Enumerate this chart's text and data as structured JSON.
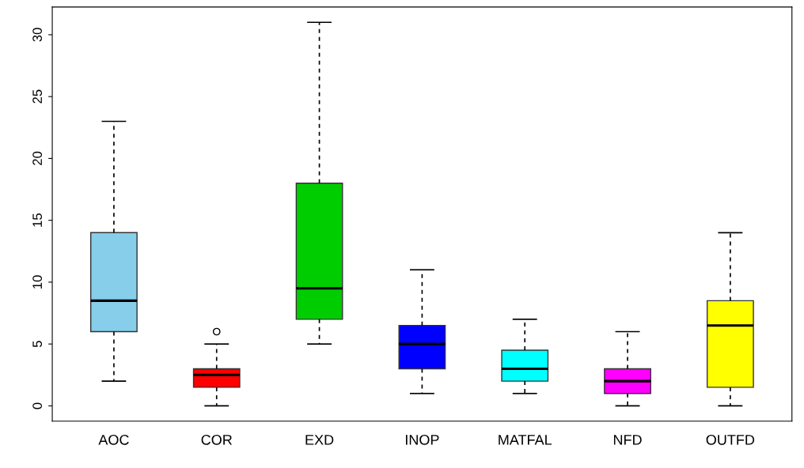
{
  "chart_data": {
    "type": "box",
    "categories": [
      "AOC",
      "COR",
      "EXD",
      "INOP",
      "MATFAL",
      "NFD",
      "OUTFD"
    ],
    "boxes": [
      {
        "low": 2,
        "q1": 6,
        "median": 8.5,
        "q3": 14,
        "high": 23
      },
      {
        "low": 0,
        "q1": 1.5,
        "median": 2.5,
        "q3": 3,
        "high": 5,
        "outliers": [
          6
        ]
      },
      {
        "low": 5,
        "q1": 7,
        "median": 9.5,
        "q3": 18,
        "high": 31
      },
      {
        "low": 1,
        "q1": 3,
        "median": 5,
        "q3": 6.5,
        "high": 11
      },
      {
        "low": 1,
        "q1": 2,
        "median": 3,
        "q3": 4.5,
        "high": 7
      },
      {
        "low": 0,
        "q1": 1,
        "median": 2,
        "q3": 3,
        "high": 6
      },
      {
        "low": 0,
        "q1": 1.5,
        "median": 6.5,
        "q3": 8.5,
        "high": 14
      }
    ],
    "colors": [
      "#87ceeb",
      "#ff0000",
      "#00cd00",
      "#0000ff",
      "#00ffff",
      "#ff00ff",
      "#ffff00"
    ],
    "ylim": [
      -1.24,
      32.24
    ],
    "yticks": [
      0,
      5,
      10,
      15,
      20,
      25,
      30
    ],
    "line_style": "dashed",
    "marker": "circle"
  }
}
